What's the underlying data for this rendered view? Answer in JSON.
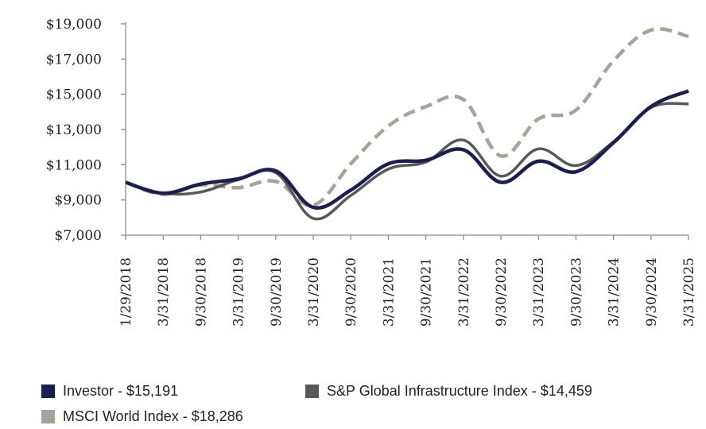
{
  "chart_data": {
    "type": "line",
    "title": "",
    "xlabel": "",
    "ylabel": "",
    "categories": [
      "1/29/2018",
      "3/31/2018",
      "9/30/2018",
      "3/31/2019",
      "9/30/2019",
      "3/31/2020",
      "9/30/2020",
      "3/31/2021",
      "9/30/2021",
      "3/31/2022",
      "9/30/2022",
      "3/31/2023",
      "9/30/2023",
      "3/31/2024",
      "9/30/2024",
      "3/31/2025"
    ],
    "y_ticks": [
      "$7,000",
      "$9,000",
      "$11,000",
      "$13,000",
      "$15,000",
      "$17,000",
      "$19,000"
    ],
    "ylim": [
      7000,
      19000
    ],
    "grid": false,
    "legend_position": "bottom",
    "series": [
      {
        "name": "Investor",
        "label": "Investor - $15,191",
        "color": "#1c1f4b",
        "dash": "solid",
        "values": [
          10000,
          9380,
          9900,
          10200,
          10650,
          8580,
          9560,
          11050,
          11250,
          11850,
          10000,
          11200,
          10600,
          12250,
          14300,
          15191
        ]
      },
      {
        "name": "S&P Global Infrastructure Index",
        "label": "S&P Global Infrastructure Index - $14,459",
        "color": "#58585a",
        "dash": "solid",
        "values": [
          10000,
          9380,
          9450,
          10150,
          10550,
          7950,
          9250,
          10750,
          11150,
          12400,
          10350,
          11900,
          10950,
          12300,
          14250,
          14459
        ]
      },
      {
        "name": "MSCI World Index",
        "label": "MSCI World Index - $18,286",
        "color": "#a8a29a",
        "dash": "dashed",
        "values": [
          10000,
          9320,
          9850,
          9700,
          10050,
          8700,
          11050,
          13200,
          14300,
          14700,
          11500,
          13600,
          14100,
          16900,
          18650,
          18286
        ]
      }
    ]
  }
}
